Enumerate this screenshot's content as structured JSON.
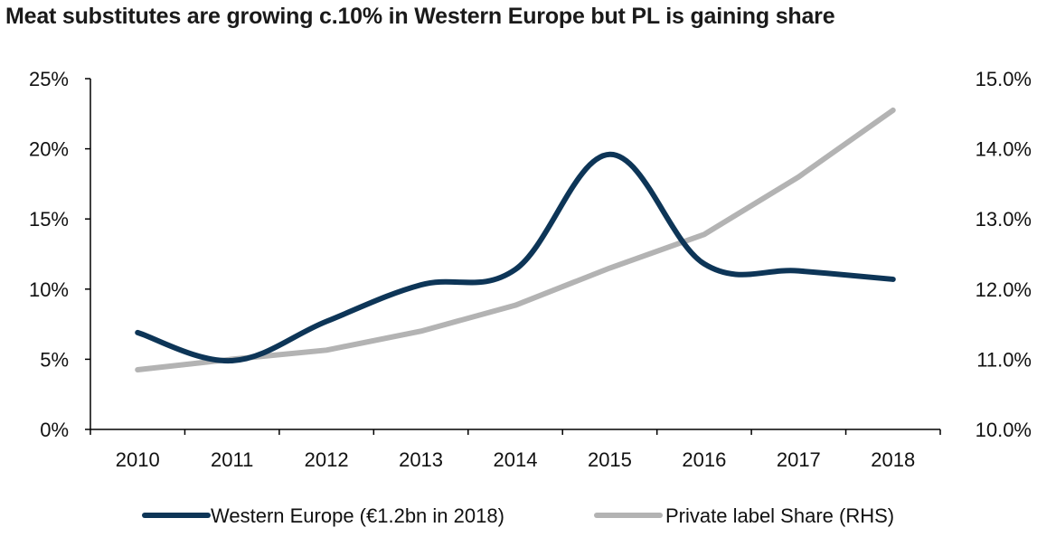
{
  "chart_data": {
    "type": "line",
    "title": "Meat substitutes are growing c.10% in Western Europe but PL is gaining share",
    "categories": [
      "2010",
      "2011",
      "2012",
      "2013",
      "2014",
      "2015",
      "2016",
      "2017",
      "2018"
    ],
    "y_left": {
      "ylim": [
        0,
        25
      ],
      "ticks": [
        0,
        5,
        10,
        15,
        20,
        25
      ],
      "tick_labels": [
        "0%",
        "5%",
        "10%",
        "15%",
        "20%",
        "25%"
      ]
    },
    "y_right": {
      "ylim": [
        10,
        15
      ],
      "ticks": [
        10,
        11,
        12,
        13,
        14,
        15
      ],
      "tick_labels": [
        "10.0%",
        "11.0%",
        "12.0%",
        "13.0%",
        "14.0%",
        "15.0%"
      ]
    },
    "series": [
      {
        "name": "Western Europe (€1.2bn in 2018)",
        "axis": "left",
        "color": "#0d3557",
        "smooth": true,
        "values": [
          6.9,
          4.9,
          7.7,
          10.3,
          11.4,
          19.6,
          11.8,
          11.3,
          10.7
        ]
      },
      {
        "name": "Private label Share (RHS)",
        "axis": "right",
        "color": "#b3b3b3",
        "smooth": false,
        "values": [
          10.85,
          11.0,
          11.13,
          11.4,
          11.77,
          12.3,
          12.78,
          13.6,
          14.55
        ]
      }
    ],
    "legend_position": "bottom",
    "grid": false
  }
}
